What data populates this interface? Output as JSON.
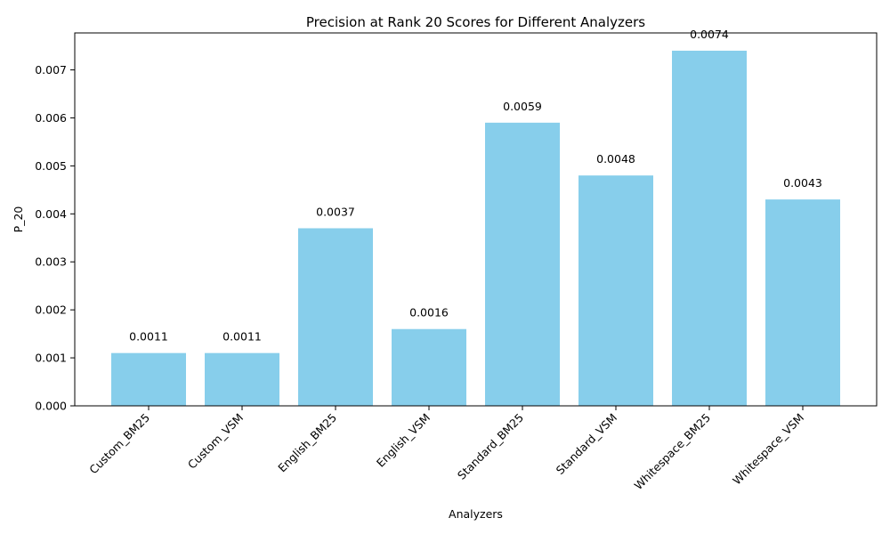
{
  "chart_data": {
    "type": "bar",
    "title": "Precision at Rank 20 Scores for Different Analyzers",
    "xlabel": "Analyzers",
    "ylabel": "P_20",
    "categories": [
      "Custom_BM25",
      "Custom_VSM",
      "English_BM25",
      "English_VSM",
      "Standard_BM25",
      "Standard_VSM",
      "Whitespace_BM25",
      "Whitespace_VSM"
    ],
    "values": [
      0.0011,
      0.0011,
      0.0037,
      0.0016,
      0.0059,
      0.0048,
      0.0074,
      0.0043
    ],
    "value_labels": [
      "0.0011",
      "0.0011",
      "0.0037",
      "0.0016",
      "0.0059",
      "0.0048",
      "0.0074",
      "0.0043"
    ],
    "ylim": [
      0,
      0.00777
    ],
    "yticks": [
      0.0,
      0.001,
      0.002,
      0.003,
      0.004,
      0.005,
      0.006,
      0.007
    ],
    "ytick_labels": [
      "0.000",
      "0.001",
      "0.002",
      "0.003",
      "0.004",
      "0.005",
      "0.006",
      "0.007"
    ],
    "bar_color": "#87ceeb",
    "grid": false,
    "legend": "none"
  }
}
